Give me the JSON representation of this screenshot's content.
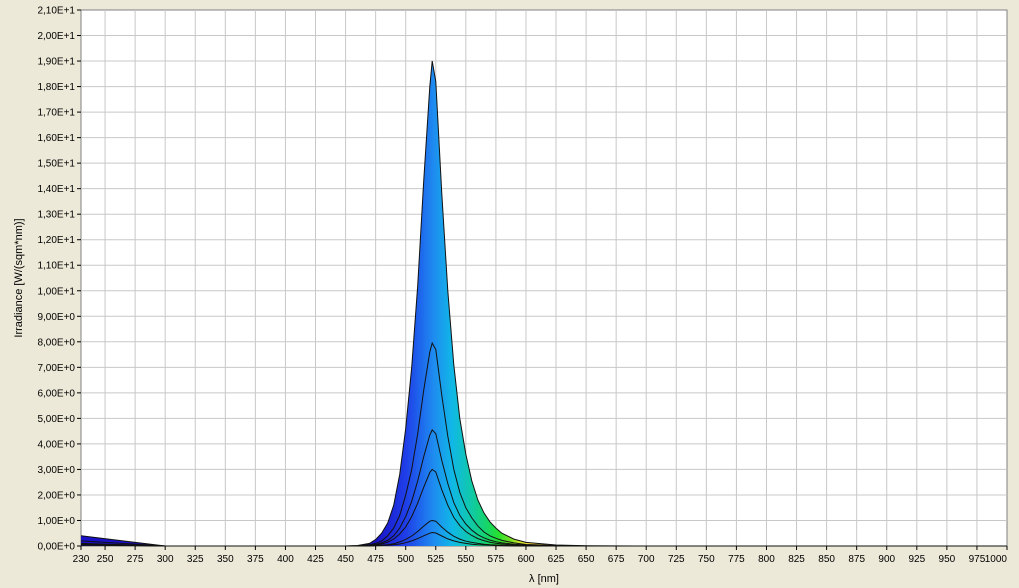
{
  "chart_data": {
    "type": "line",
    "title": "",
    "xlabel": "λ [nm]",
    "ylabel": "Irradiance [W/(sqm*nm)]",
    "xlim": [
      230,
      1000
    ],
    "ylim": [
      0,
      21
    ],
    "grid": true,
    "x_tick_labels": [
      "230",
      "250",
      "275",
      "300",
      "325",
      "350",
      "375",
      "400",
      "425",
      "450",
      "475",
      "500",
      "525",
      "550",
      "575",
      "600",
      "625",
      "650",
      "675",
      "700",
      "725",
      "750",
      "775",
      "800",
      "825",
      "850",
      "875",
      "900",
      "925",
      "950",
      "975",
      "1000"
    ],
    "y_tick_labels": [
      "0,00E+0",
      "1,00E+0",
      "2,00E+0",
      "3,00E+0",
      "4,00E+0",
      "5,00E+0",
      "6,00E+0",
      "7,00E+0",
      "8,00E+0",
      "9,00E+0",
      "1,00E+1",
      "1,10E+1",
      "1,20E+1",
      "1,30E+1",
      "1,40E+1",
      "1,50E+1",
      "1,60E+1",
      "1,70E+1",
      "1,80E+1",
      "1,90E+1",
      "2,00E+1",
      "2,10E+1"
    ],
    "x": [
      230,
      300,
      400,
      450,
      460,
      470,
      475,
      480,
      485,
      490,
      495,
      500,
      505,
      510,
      515,
      520,
      522,
      525,
      530,
      535,
      540,
      545,
      550,
      555,
      560,
      565,
      570,
      575,
      580,
      590,
      600,
      625,
      650,
      700,
      1000
    ],
    "series": [
      {
        "values": [
          0.4,
          0.0,
          0.0,
          0.0,
          0.02,
          0.1,
          0.25,
          0.5,
          0.9,
          1.6,
          2.8,
          4.6,
          7.0,
          10.2,
          14.3,
          18.0,
          19.0,
          18.2,
          13.8,
          10.0,
          7.1,
          5.0,
          3.6,
          2.55,
          1.8,
          1.3,
          0.95,
          0.7,
          0.5,
          0.27,
          0.14,
          0.04,
          0.01,
          0.0,
          0.0
        ]
      },
      {
        "values": [
          0.2,
          0.0,
          0.0,
          0.0,
          0.01,
          0.05,
          0.1,
          0.2,
          0.4,
          0.7,
          1.2,
          2.0,
          3.0,
          4.4,
          6.1,
          7.6,
          7.95,
          7.7,
          5.9,
          4.3,
          3.0,
          2.1,
          1.5,
          1.1,
          0.78,
          0.55,
          0.4,
          0.3,
          0.22,
          0.12,
          0.06,
          0.02,
          0.0,
          0.0,
          0.0
        ]
      },
      {
        "values": [
          0.1,
          0.0,
          0.0,
          0.0,
          0.0,
          0.03,
          0.06,
          0.12,
          0.22,
          0.4,
          0.7,
          1.15,
          1.75,
          2.55,
          3.5,
          4.35,
          4.55,
          4.4,
          3.35,
          2.45,
          1.7,
          1.2,
          0.86,
          0.62,
          0.44,
          0.32,
          0.23,
          0.17,
          0.12,
          0.07,
          0.04,
          0.01,
          0.0,
          0.0,
          0.0
        ]
      },
      {
        "values": [
          0.08,
          0.0,
          0.0,
          0.0,
          0.0,
          0.02,
          0.04,
          0.08,
          0.15,
          0.27,
          0.47,
          0.75,
          1.15,
          1.68,
          2.3,
          2.88,
          3.0,
          2.9,
          2.2,
          1.6,
          1.12,
          0.8,
          0.57,
          0.41,
          0.29,
          0.21,
          0.15,
          0.11,
          0.08,
          0.04,
          0.02,
          0.0,
          0.0,
          0.0,
          0.0
        ]
      },
      {
        "values": [
          0.05,
          0.0,
          0.0,
          0.0,
          0.0,
          0.01,
          0.02,
          0.03,
          0.05,
          0.09,
          0.16,
          0.26,
          0.39,
          0.57,
          0.78,
          0.97,
          1.0,
          0.97,
          0.74,
          0.54,
          0.38,
          0.27,
          0.19,
          0.14,
          0.1,
          0.07,
          0.05,
          0.04,
          0.03,
          0.01,
          0.0,
          0.0,
          0.0,
          0.0,
          0.0
        ]
      },
      {
        "values": [
          0.03,
          0.0,
          0.0,
          0.0,
          0.0,
          0.0,
          0.01,
          0.02,
          0.03,
          0.05,
          0.08,
          0.13,
          0.2,
          0.29,
          0.4,
          0.5,
          0.53,
          0.51,
          0.39,
          0.28,
          0.2,
          0.14,
          0.1,
          0.07,
          0.05,
          0.04,
          0.03,
          0.02,
          0.01,
          0.0,
          0.0,
          0.0,
          0.0,
          0.0,
          0.0
        ]
      }
    ]
  }
}
